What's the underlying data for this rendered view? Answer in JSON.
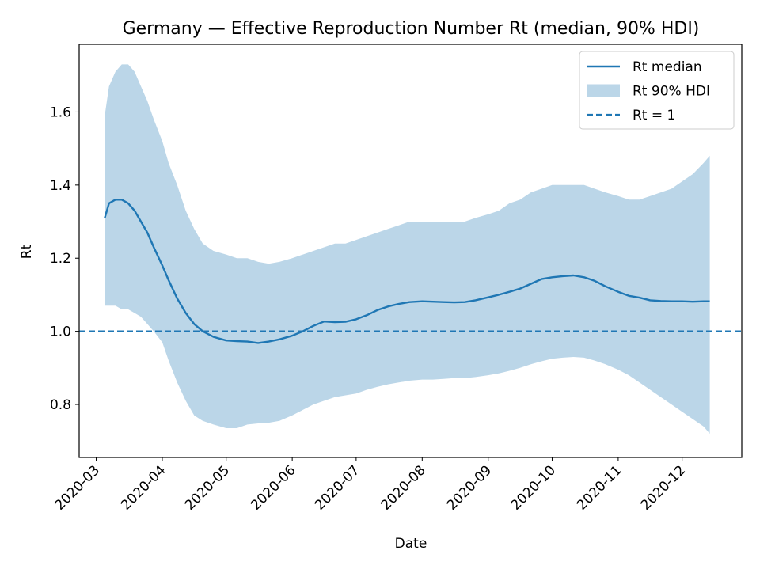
{
  "chart_data": {
    "type": "line",
    "title": "Germany — Effective Reproduction Number Rt (median, 90% HDI)",
    "xlabel": "Date",
    "ylabel": "Rt",
    "xlim": [
      "2020-02-22",
      "2020-12-29"
    ],
    "ylim": [
      0.655,
      1.785
    ],
    "x_ticks": [
      "2020-03",
      "2020-04",
      "2020-05",
      "2020-06",
      "2020-07",
      "2020-08",
      "2020-09",
      "2020-10",
      "2020-11",
      "2020-12"
    ],
    "y_ticks": [
      "0.8",
      "1.0",
      "1.2",
      "1.4",
      "1.6"
    ],
    "grid": false,
    "legend": {
      "placement": "top-right",
      "entries": [
        {
          "label": "Rt median",
          "kind": "line",
          "color": "#1f77b4"
        },
        {
          "label": "Rt 90% HDI",
          "kind": "band",
          "color": "#bbd6e8"
        },
        {
          "label": "Rt = 1",
          "kind": "dashed",
          "color": "#1f77b4"
        }
      ]
    },
    "colors": {
      "median": "#1f77b4",
      "band": "#bbd6e8",
      "reference": "#1f77b4"
    },
    "reference_line": {
      "name": "Rt = 1",
      "y": 1.0
    },
    "x": [
      "2020-03-05",
      "2020-03-07",
      "2020-03-10",
      "2020-03-13",
      "2020-03-16",
      "2020-03-19",
      "2020-03-22",
      "2020-03-25",
      "2020-03-28",
      "2020-04-01",
      "2020-04-04",
      "2020-04-08",
      "2020-04-12",
      "2020-04-16",
      "2020-04-20",
      "2020-04-25",
      "2020-05-01",
      "2020-05-06",
      "2020-05-11",
      "2020-05-16",
      "2020-05-21",
      "2020-05-26",
      "2020-06-01",
      "2020-06-06",
      "2020-06-11",
      "2020-06-16",
      "2020-06-21",
      "2020-06-26",
      "2020-07-01",
      "2020-07-06",
      "2020-07-11",
      "2020-07-16",
      "2020-07-21",
      "2020-07-26",
      "2020-08-01",
      "2020-08-06",
      "2020-08-11",
      "2020-08-16",
      "2020-08-21",
      "2020-08-26",
      "2020-09-01",
      "2020-09-06",
      "2020-09-11",
      "2020-09-16",
      "2020-09-21",
      "2020-09-26",
      "2020-10-01",
      "2020-10-06",
      "2020-10-11",
      "2020-10-16",
      "2020-10-21",
      "2020-10-26",
      "2020-11-01",
      "2020-11-06",
      "2020-11-11",
      "2020-11-16",
      "2020-11-21",
      "2020-11-26",
      "2020-12-01",
      "2020-12-06",
      "2020-12-11",
      "2020-12-14"
    ],
    "series": [
      {
        "name": "Rt median",
        "values": [
          1.31,
          1.35,
          1.36,
          1.36,
          1.35,
          1.33,
          1.3,
          1.27,
          1.23,
          1.18,
          1.14,
          1.09,
          1.05,
          1.02,
          1.0,
          0.985,
          0.975,
          0.973,
          0.972,
          0.968,
          0.972,
          0.978,
          0.988,
          1.0,
          1.015,
          1.027,
          1.025,
          1.026,
          1.033,
          1.044,
          1.058,
          1.068,
          1.075,
          1.08,
          1.082,
          1.081,
          1.08,
          1.079,
          1.08,
          1.085,
          1.093,
          1.1,
          1.108,
          1.117,
          1.13,
          1.143,
          1.148,
          1.151,
          1.153,
          1.148,
          1.138,
          1.123,
          1.108,
          1.097,
          1.092,
          1.085,
          1.083,
          1.082,
          1.082,
          1.081,
          1.082,
          1.082
        ]
      },
      {
        "name": "Rt 90% HDI upper",
        "values": [
          1.59,
          1.67,
          1.71,
          1.73,
          1.73,
          1.71,
          1.67,
          1.63,
          1.58,
          1.52,
          1.46,
          1.4,
          1.33,
          1.28,
          1.24,
          1.22,
          1.21,
          1.2,
          1.2,
          1.19,
          1.185,
          1.19,
          1.2,
          1.21,
          1.22,
          1.23,
          1.24,
          1.24,
          1.25,
          1.26,
          1.27,
          1.28,
          1.29,
          1.3,
          1.3,
          1.3,
          1.3,
          1.3,
          1.3,
          1.31,
          1.32,
          1.33,
          1.35,
          1.36,
          1.38,
          1.39,
          1.4,
          1.4,
          1.4,
          1.4,
          1.39,
          1.38,
          1.37,
          1.36,
          1.36,
          1.37,
          1.38,
          1.39,
          1.41,
          1.43,
          1.46,
          1.48
        ]
      },
      {
        "name": "Rt 90% HDI lower",
        "values": [
          1.07,
          1.07,
          1.07,
          1.06,
          1.06,
          1.05,
          1.04,
          1.02,
          1.0,
          0.97,
          0.92,
          0.86,
          0.81,
          0.77,
          0.755,
          0.745,
          0.735,
          0.735,
          0.745,
          0.748,
          0.75,
          0.755,
          0.77,
          0.785,
          0.8,
          0.81,
          0.82,
          0.825,
          0.83,
          0.84,
          0.848,
          0.855,
          0.86,
          0.865,
          0.868,
          0.868,
          0.87,
          0.872,
          0.872,
          0.875,
          0.88,
          0.885,
          0.892,
          0.9,
          0.91,
          0.918,
          0.925,
          0.928,
          0.93,
          0.928,
          0.92,
          0.91,
          0.895,
          0.88,
          0.86,
          0.84,
          0.82,
          0.8,
          0.78,
          0.76,
          0.74,
          0.72
        ]
      }
    ]
  }
}
